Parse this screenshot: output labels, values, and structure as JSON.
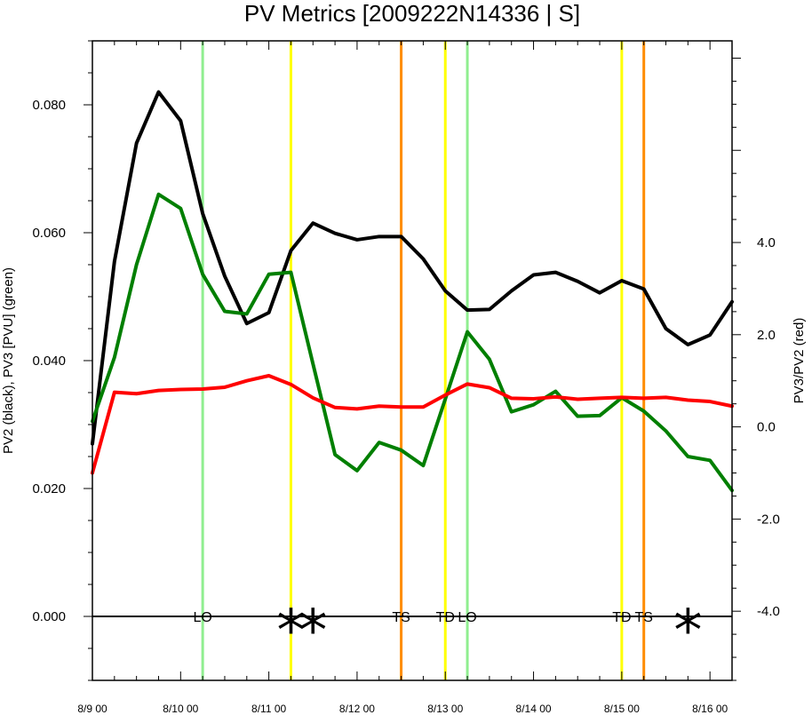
{
  "chart_data": {
    "type": "line",
    "title": "PV Metrics [2009222N14336 | S]",
    "ylabel_left": "PV2 (black), PV3 [PVU] (green)",
    "ylabel_right": "PV3/PV2 (red)",
    "xlim": [
      0,
      7.25
    ],
    "ylim_left": [
      -0.01,
      0.09
    ],
    "ylim_right": [
      -5.5,
      8.375
    ],
    "yticks_left": [
      {
        "value": 0.0,
        "label": "0.000"
      },
      {
        "value": 0.02,
        "label": "0.020"
      },
      {
        "value": 0.04,
        "label": "0.040"
      },
      {
        "value": 0.06,
        "label": "0.060"
      },
      {
        "value": 0.08,
        "label": "0.080"
      }
    ],
    "yticks_right": [
      {
        "value": -4.0,
        "label": "-4.0"
      },
      {
        "value": -2.0,
        "label": "-2.0"
      },
      {
        "value": 0.0,
        "label": "0.0"
      },
      {
        "value": 2.0,
        "label": "2.0"
      },
      {
        "value": 4.0,
        "label": "4.0"
      }
    ],
    "xticks": [
      {
        "value": 0,
        "label": "8/9 00"
      },
      {
        "value": 1,
        "label": "8/10 00"
      },
      {
        "value": 2,
        "label": "8/11 00"
      },
      {
        "value": 3,
        "label": "8/12 00"
      },
      {
        "value": 4,
        "label": "8/13 00"
      },
      {
        "value": 5,
        "label": "8/14 00"
      },
      {
        "value": 6,
        "label": "8/15 00"
      },
      {
        "value": 7,
        "label": "8/16 00"
      }
    ],
    "x": [
      0,
      0.25,
      0.5,
      0.75,
      1,
      1.25,
      1.5,
      1.75,
      2,
      2.25,
      2.5,
      2.75,
      3,
      3.25,
      3.5,
      3.75,
      4,
      4.25,
      4.5,
      4.75,
      5,
      5.25,
      5.5,
      5.75,
      6,
      6.25,
      6.5,
      6.75,
      7,
      7.25
    ],
    "series": [
      {
        "id": "pv2",
        "axis": "left",
        "color": "#000000",
        "values": [
          0.027,
          0.0555,
          0.074,
          0.082,
          0.0775,
          0.063,
          0.0532,
          0.0458,
          0.0475,
          0.0572,
          0.0615,
          0.0599,
          0.0589,
          0.0594,
          0.0594,
          0.0559,
          0.0509,
          0.0479,
          0.048,
          0.0509,
          0.0534,
          0.0538,
          0.0524,
          0.0506,
          0.0525,
          0.0512,
          0.045,
          0.0425,
          0.044,
          0.0492
        ]
      },
      {
        "id": "pv3",
        "axis": "left",
        "color": "#007f00",
        "values": [
          0.0305,
          0.0405,
          0.055,
          0.066,
          0.0638,
          0.0535,
          0.0477,
          0.0473,
          0.0535,
          0.0538,
          0.0395,
          0.0253,
          0.0228,
          0.0272,
          0.026,
          0.0236,
          0.034,
          0.0445,
          0.0402,
          0.032,
          0.0331,
          0.0352,
          0.0313,
          0.0314,
          0.0342,
          0.0321,
          0.029,
          0.025,
          0.0244,
          0.0197
        ]
      },
      {
        "id": "ratio",
        "axis": "right",
        "color": "#ff0000",
        "values": [
          -1.0,
          0.75,
          0.72,
          0.79,
          0.81,
          0.82,
          0.86,
          1.0,
          1.11,
          0.92,
          0.63,
          0.42,
          0.39,
          0.45,
          0.43,
          0.43,
          0.69,
          0.93,
          0.85,
          0.62,
          0.61,
          0.65,
          0.6,
          0.62,
          0.64,
          0.62,
          0.64,
          0.58,
          0.55,
          0.45
        ]
      }
    ],
    "zero_line": 0.0,
    "vlines": [
      {
        "x": 1.25,
        "color": "#90ee90"
      },
      {
        "x": 2.25,
        "color": "#ffff00"
      },
      {
        "x": 3.5,
        "color": "#ff8c00"
      },
      {
        "x": 4.0,
        "color": "#ffff00"
      },
      {
        "x": 4.25,
        "color": "#90ee90"
      },
      {
        "x": 6.0,
        "color": "#ffff00"
      },
      {
        "x": 6.25,
        "color": "#ff8c00"
      }
    ],
    "event_labels": [
      {
        "x": 1.25,
        "text": "LO"
      },
      {
        "x": 3.5,
        "text": "TS"
      },
      {
        "x": 4.0,
        "text": "TD"
      },
      {
        "x": 4.25,
        "text": "LO"
      },
      {
        "x": 6.0,
        "text": "TD"
      },
      {
        "x": 6.25,
        "text": "TS"
      }
    ],
    "markers": [
      {
        "x": 2.25,
        "text": "*"
      },
      {
        "x": 2.5,
        "text": "*"
      },
      {
        "x": 6.75,
        "text": "*"
      }
    ]
  }
}
